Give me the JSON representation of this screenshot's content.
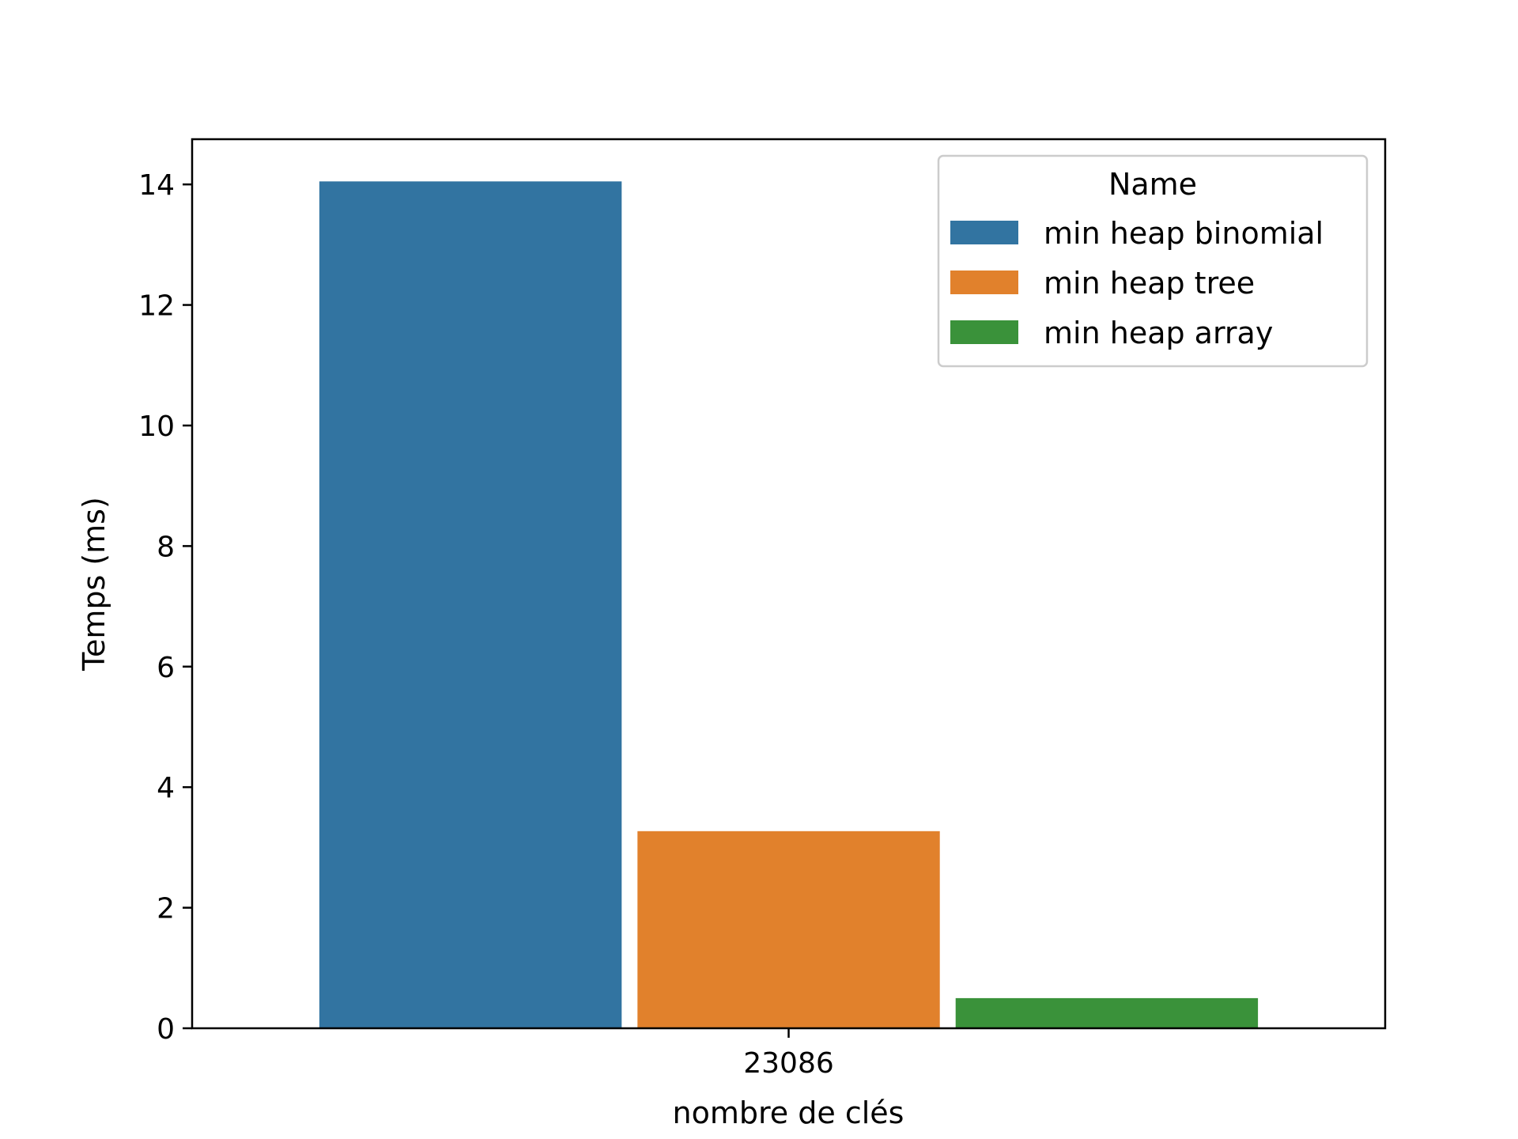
{
  "chart_data": {
    "type": "bar",
    "categories": [
      "23086"
    ],
    "series": [
      {
        "name": "min heap binomial",
        "values": [
          14.05
        ],
        "color": "#3274a1"
      },
      {
        "name": "min heap tree",
        "values": [
          3.27
        ],
        "color": "#e1812c"
      },
      {
        "name": "min heap array",
        "values": [
          0.5
        ],
        "color": "#3a923a"
      }
    ],
    "title": "",
    "xlabel": "nombre de clés",
    "ylabel": "Temps (ms)",
    "ylim": [
      0,
      14.75
    ],
    "yticks": [
      0,
      2,
      4,
      6,
      8,
      10,
      12,
      14
    ],
    "grid": false,
    "legend": {
      "title": "Name",
      "position": "top-right"
    }
  }
}
